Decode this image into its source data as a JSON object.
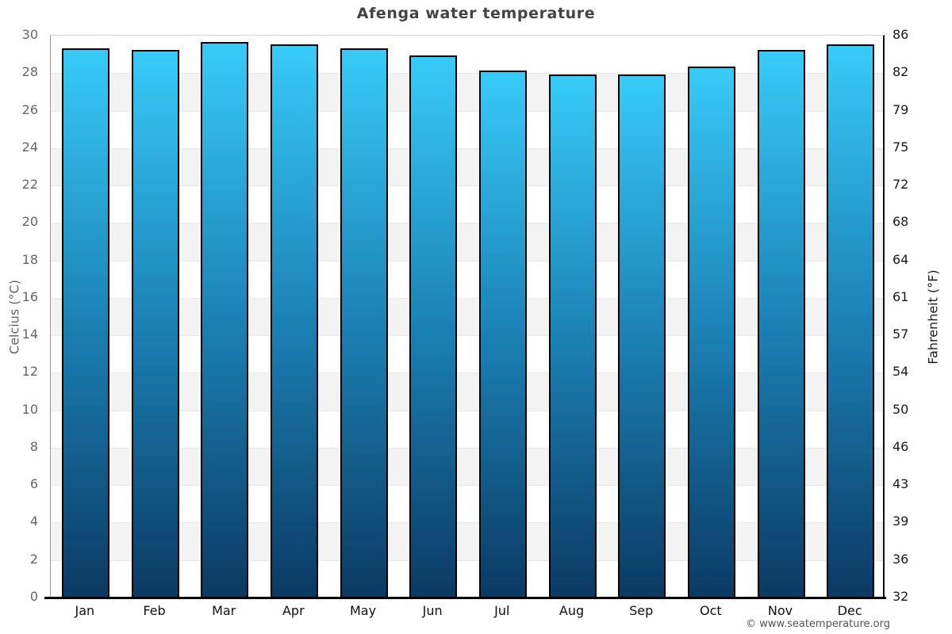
{
  "page": {
    "footer": "© www.seatemperature.org"
  },
  "chart_data": {
    "type": "bar",
    "title": "Afenga water temperature",
    "categories": [
      "Jan",
      "Feb",
      "Mar",
      "Apr",
      "May",
      "Jun",
      "Jul",
      "Aug",
      "Sep",
      "Oct",
      "Nov",
      "Dec"
    ],
    "values": [
      29.3,
      29.2,
      29.6,
      29.5,
      29.3,
      28.9,
      28.1,
      27.9,
      27.9,
      28.3,
      29.2,
      29.5
    ],
    "unit": "°C",
    "ylabel_left": "Celcius (°C)",
    "ylabel_right": "Fahrenheit (°F)",
    "ylim_celsius": [
      0,
      30
    ],
    "yticks_celsius": [
      30,
      28,
      26,
      24,
      22,
      20,
      18,
      16,
      14,
      12,
      10,
      8,
      6,
      4,
      2,
      0
    ],
    "yticks_fahrenheit": [
      "86",
      "82",
      "79",
      "75",
      "72",
      "68",
      "64",
      "61",
      "57",
      "54",
      "50",
      "46",
      "43",
      "39",
      "36",
      "32"
    ],
    "grid": "alternating-horizontal-bands",
    "legend_position": "none",
    "colors": {
      "bar_gradient_top": "#38cbf8",
      "bar_gradient_mid": "#1b81b5",
      "bar_gradient_bottom": "#0b3a63",
      "bar_border": "#000000",
      "band_gray": "#f3f3f3",
      "title_text": "#444444",
      "left_axis_text": "#666666",
      "right_axis_text": "#1a1a1a",
      "footer_text": "#555555"
    }
  }
}
